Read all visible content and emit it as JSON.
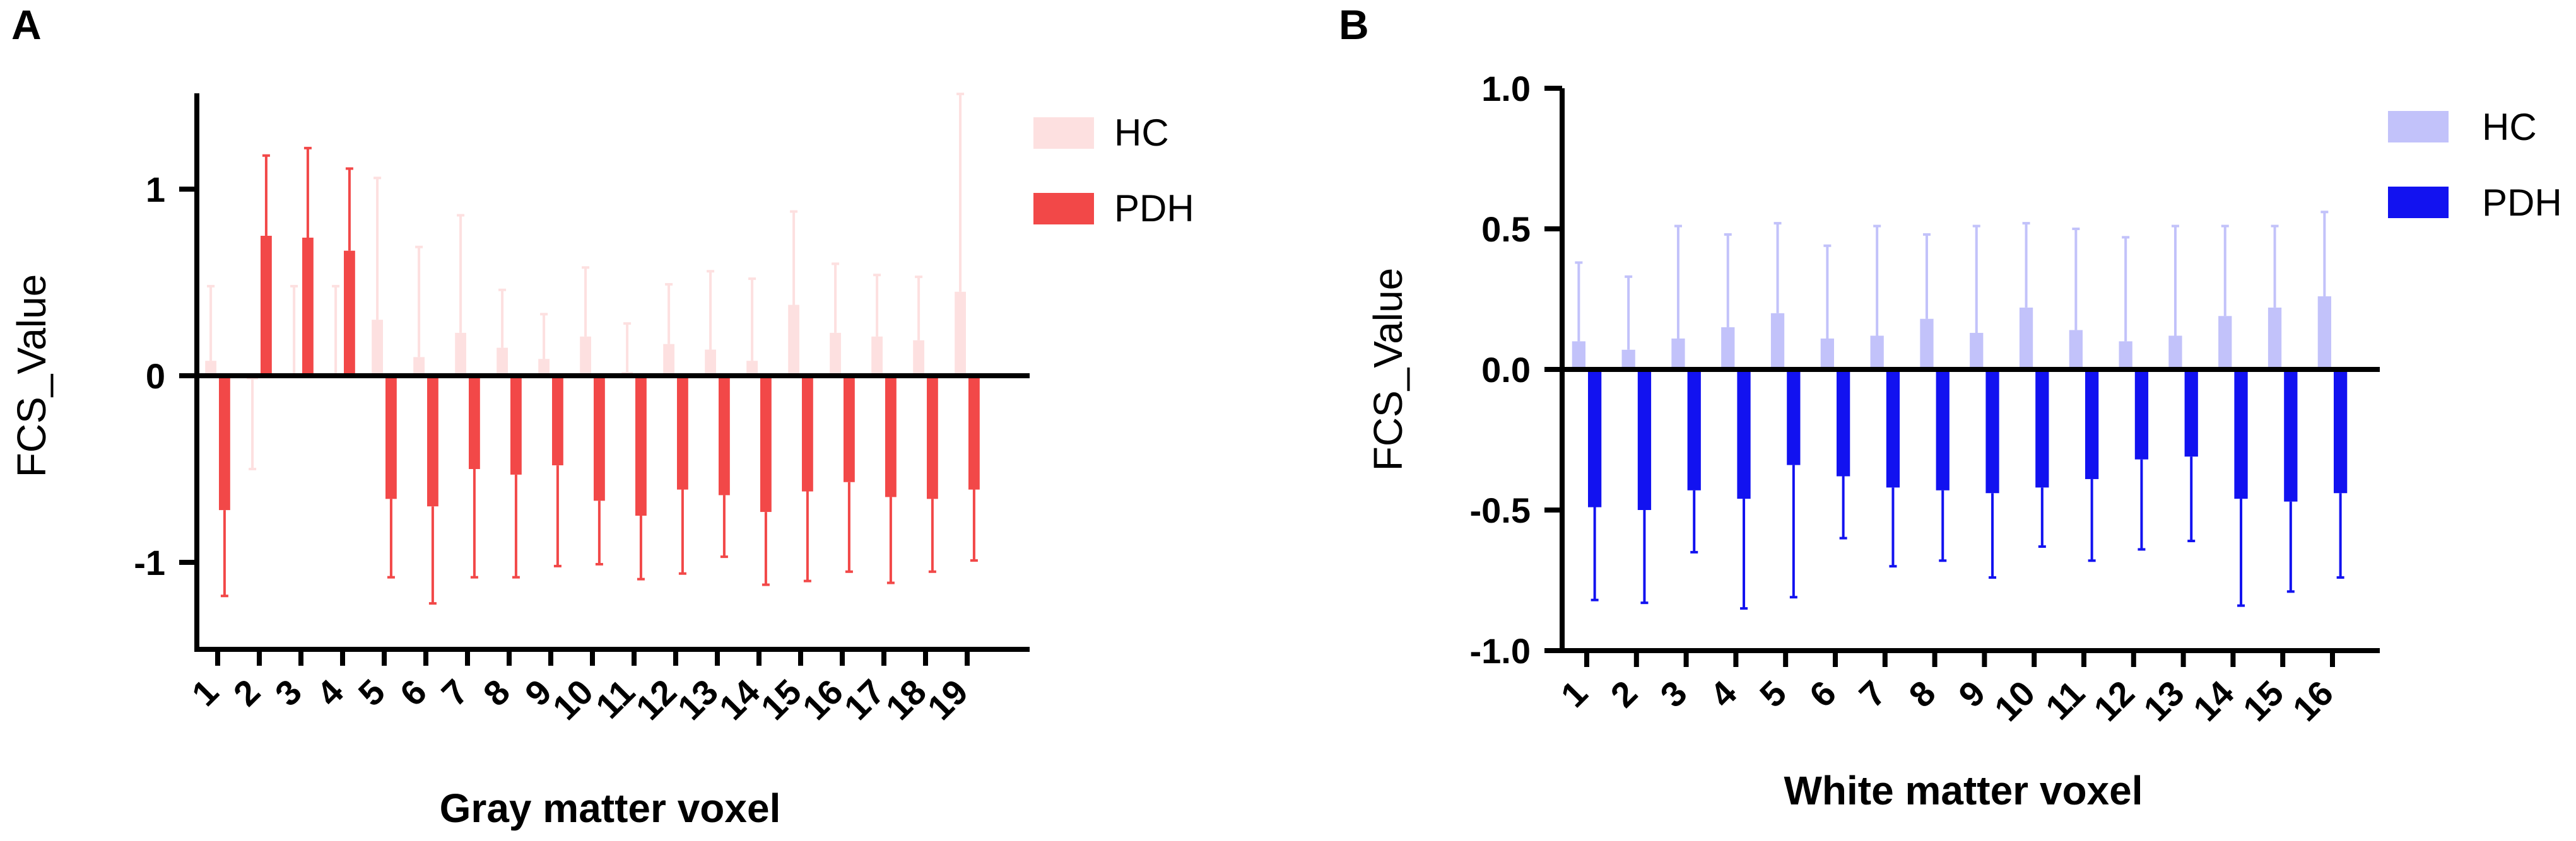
{
  "chart_data": [
    {
      "panel": "A",
      "type": "bar",
      "title": "",
      "xlabel": "Gray matter  voxel",
      "ylabel": "FCS_Value",
      "ylim": [
        -1.5,
        1.5
      ],
      "yticks": [
        1,
        0,
        -1
      ],
      "ytick_labels": [
        "1",
        "0",
        "-1"
      ],
      "categories": [
        "1",
        "2",
        "3",
        "4",
        "5",
        "6",
        "7",
        "8",
        "9",
        "10",
        "11",
        "12",
        "13",
        "14",
        "15",
        "16",
        "17",
        "18",
        "19"
      ],
      "legend": "top-right",
      "series": [
        {
          "name": "HC",
          "color": "#fde0e0",
          "values": [
            0.08,
            -0.02,
            0.0,
            0.0,
            0.3,
            0.1,
            0.23,
            0.15,
            0.09,
            0.21,
            0.02,
            0.17,
            0.14,
            0.08,
            0.38,
            0.23,
            0.21,
            0.19,
            0.45
          ],
          "errors": [
            0.4,
            0.48,
            0.48,
            0.48,
            0.76,
            0.59,
            0.63,
            0.31,
            0.24,
            0.37,
            0.26,
            0.32,
            0.42,
            0.44,
            0.5,
            0.37,
            0.33,
            0.34,
            1.06
          ]
        },
        {
          "name": "PDH",
          "color": "#f24848",
          "values": [
            -0.72,
            0.75,
            0.74,
            0.67,
            -0.66,
            -0.7,
            -0.5,
            -0.53,
            -0.48,
            -0.67,
            -0.75,
            -0.61,
            -0.64,
            -0.73,
            -0.62,
            -0.57,
            -0.65,
            -0.66,
            -0.61
          ],
          "errors": [
            0.46,
            0.43,
            0.48,
            0.44,
            0.42,
            0.52,
            0.58,
            0.55,
            0.54,
            0.34,
            0.34,
            0.45,
            0.33,
            0.39,
            0.48,
            0.48,
            0.46,
            0.39,
            0.38
          ]
        }
      ]
    },
    {
      "panel": "B",
      "type": "bar",
      "title": "",
      "xlabel": "White matter voxel",
      "ylabel": "FCS_Value",
      "ylim": [
        -1.0,
        1.0
      ],
      "yticks": [
        1.0,
        0.5,
        0.0,
        -0.5,
        -1.0
      ],
      "ytick_labels": [
        "1.0",
        "0.5",
        "0.0",
        "-0.5",
        "-1.0"
      ],
      "categories": [
        "1",
        "2",
        "3",
        "4",
        "5",
        "6",
        "7",
        "8",
        "9",
        "10",
        "11",
        "12",
        "13",
        "14",
        "15",
        "16"
      ],
      "legend": "top-right",
      "series": [
        {
          "name": "HC",
          "color": "#c2c2fa",
          "values": [
            0.1,
            0.07,
            0.11,
            0.15,
            0.2,
            0.11,
            0.12,
            0.18,
            0.13,
            0.22,
            0.14,
            0.1,
            0.12,
            0.19,
            0.22,
            0.26
          ],
          "errors": [
            0.28,
            0.26,
            0.4,
            0.33,
            0.32,
            0.33,
            0.39,
            0.3,
            0.38,
            0.3,
            0.36,
            0.37,
            0.39,
            0.32,
            0.29,
            0.3
          ]
        },
        {
          "name": "PDH",
          "color": "#1212f0",
          "values": [
            -0.49,
            -0.5,
            -0.43,
            -0.46,
            -0.34,
            -0.38,
            -0.42,
            -0.43,
            -0.44,
            -0.42,
            -0.39,
            -0.32,
            -0.31,
            -0.46,
            -0.47,
            -0.44
          ],
          "errors": [
            0.33,
            0.33,
            0.22,
            0.39,
            0.47,
            0.22,
            0.28,
            0.25,
            0.3,
            0.21,
            0.29,
            0.32,
            0.3,
            0.38,
            0.32,
            0.3
          ]
        }
      ]
    }
  ]
}
